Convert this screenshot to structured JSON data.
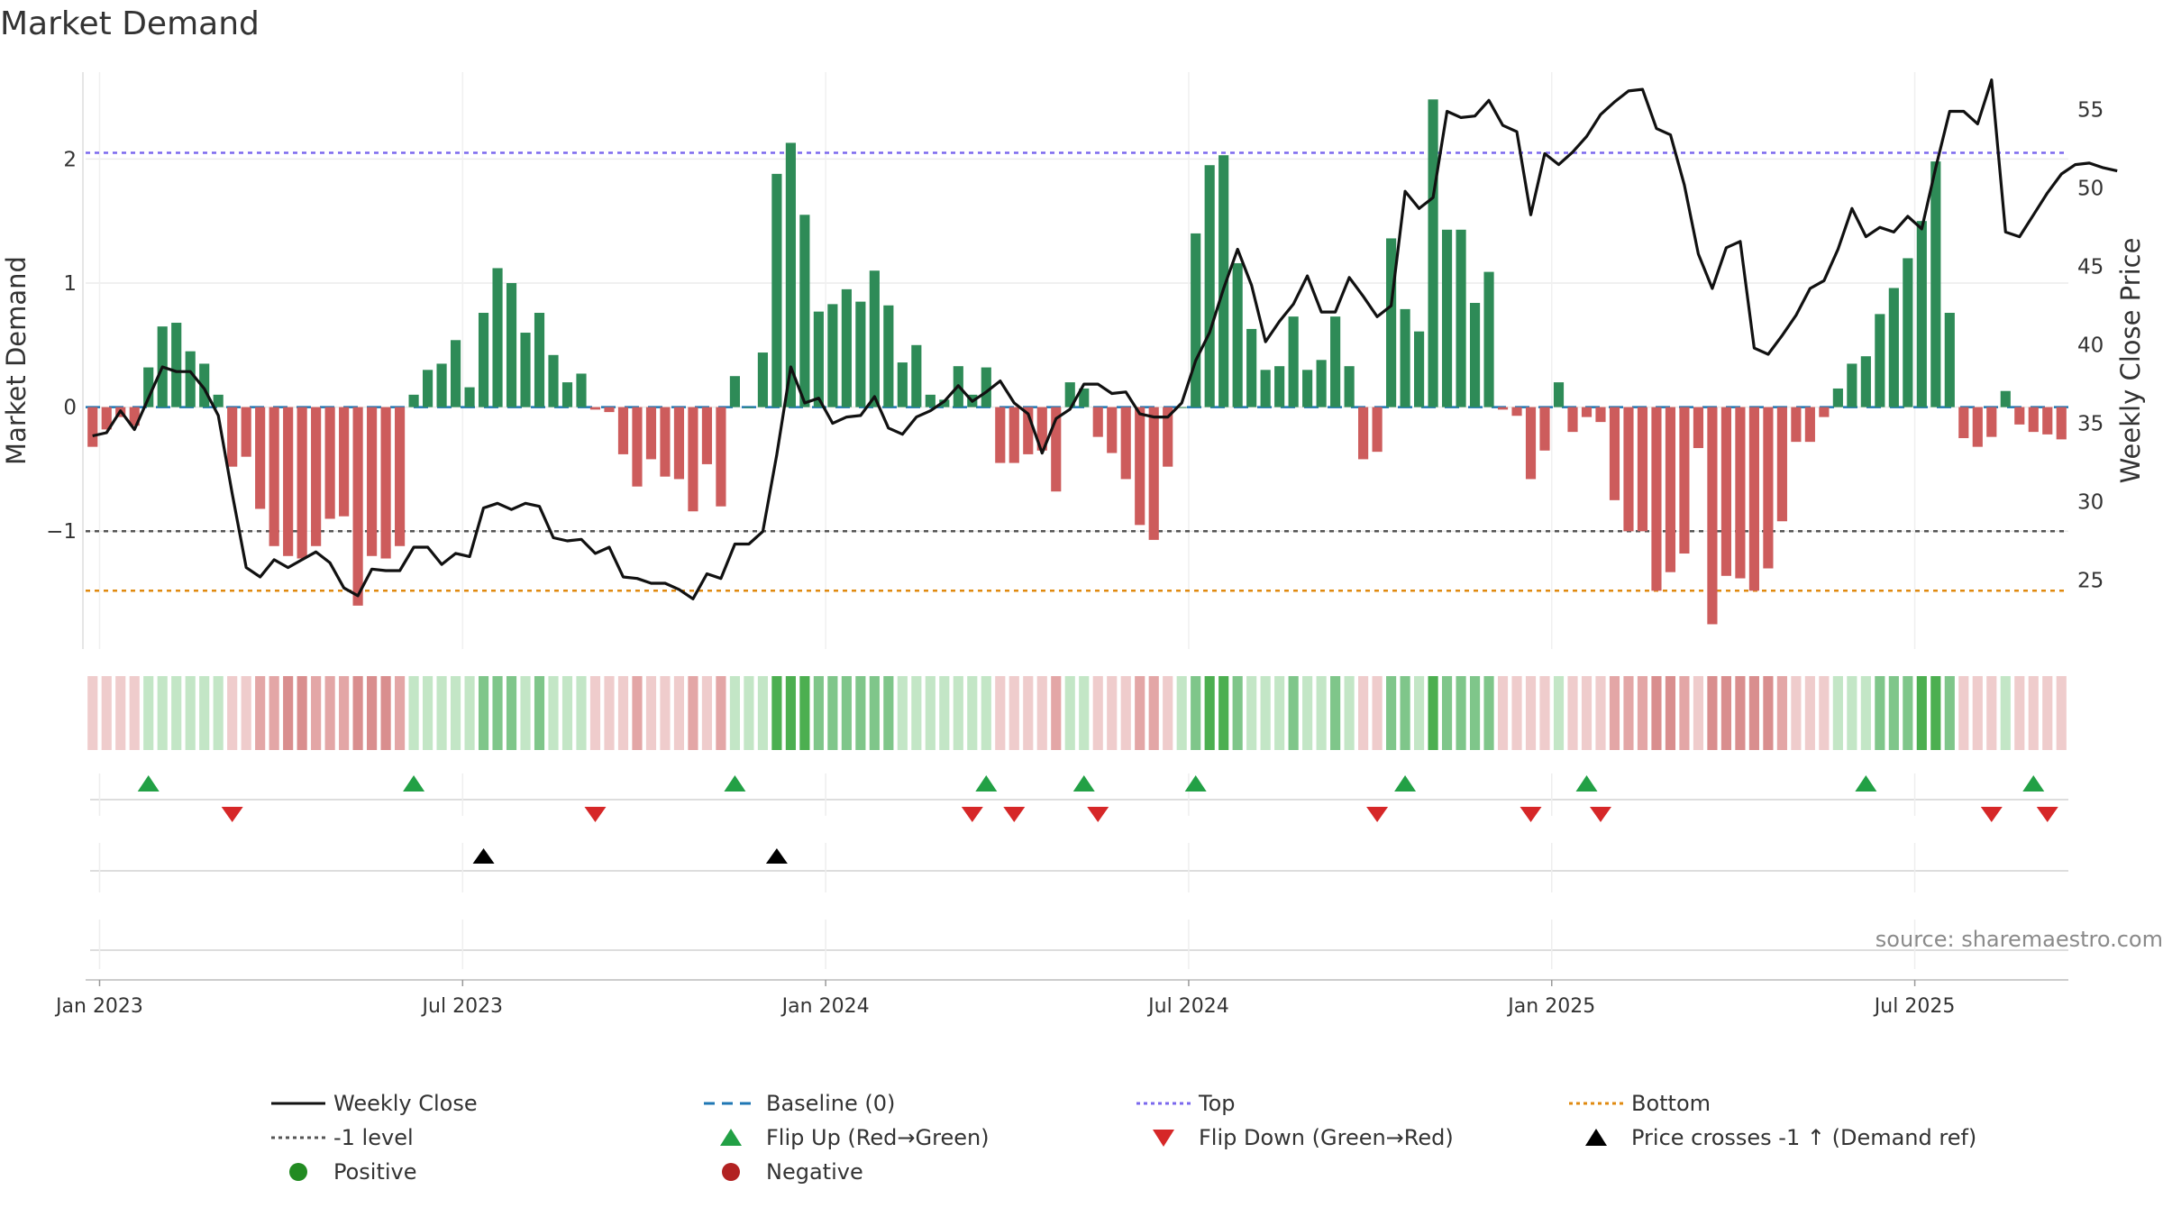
{
  "chart_data": {
    "type": "bar",
    "title": "Market Demand",
    "ylabel": "Market Demand",
    "y2label": "Weekly Close Price",
    "ylim": [
      -1.95,
      2.7
    ],
    "y2lim": [
      20.6,
      57.4
    ],
    "y_ticks": [
      2,
      1,
      0,
      -1
    ],
    "y_tick_labels": [
      "2",
      "1",
      "0",
      "−1"
    ],
    "y2_ticks": [
      55,
      50,
      45,
      40,
      35,
      30,
      25
    ],
    "x_tick_labels": [
      "Jan 2023",
      "Jul 2023",
      "Jan 2024",
      "Jul 2024",
      "Jan 2025",
      "Jul 2025"
    ],
    "x_tick_weeks": [
      1,
      27,
      53,
      79,
      105,
      131
    ],
    "top_level": 2.05,
    "bottom_level": -1.48,
    "minus_one_level": -1,
    "demand": [
      -0.32,
      -0.18,
      -0.08,
      -0.15,
      0.32,
      0.65,
      0.68,
      0.45,
      0.35,
      0.1,
      -0.48,
      -0.4,
      -0.82,
      -1.12,
      -1.2,
      -1.22,
      -1.12,
      -0.9,
      -0.88,
      -1.6,
      -1.2,
      -1.22,
      -1.12,
      0.1,
      0.3,
      0.35,
      0.54,
      0.16,
      0.76,
      1.12,
      1.0,
      0.6,
      0.76,
      0.42,
      0.2,
      0.27,
      -0.02,
      -0.04,
      -0.38,
      -0.64,
      -0.42,
      -0.56,
      -0.58,
      -0.84,
      -0.46,
      -0.8,
      0.25,
      0.0,
      0.44,
      1.88,
      2.13,
      1.55,
      0.77,
      0.83,
      0.95,
      0.85,
      1.1,
      0.82,
      0.36,
      0.5,
      0.1,
      0.06,
      0.33,
      0.1,
      0.32,
      -0.45,
      -0.45,
      -0.38,
      -0.35,
      -0.68,
      0.2,
      0.15,
      -0.24,
      -0.37,
      -0.58,
      -0.95,
      -1.07,
      -0.48,
      0.0,
      1.4,
      1.95,
      2.03,
      1.16,
      0.63,
      0.3,
      0.33,
      0.73,
      0.3,
      0.38,
      0.73,
      0.33,
      -0.42,
      -0.36,
      1.36,
      0.79,
      0.61,
      2.48,
      1.43,
      1.43,
      0.84,
      1.09,
      -0.02,
      -0.07,
      -0.58,
      -0.35,
      0.2,
      -0.2,
      -0.08,
      -0.12,
      -0.75,
      -1.0,
      -1.0,
      -1.48,
      -1.33,
      -1.18,
      -0.33,
      -1.75,
      -1.36,
      -1.38,
      -1.48,
      -1.3,
      -0.92,
      -0.28,
      -0.28,
      -0.08,
      0.15,
      0.35,
      0.41,
      0.75,
      0.96,
      1.2,
      1.5,
      1.98,
      0.76,
      -0.25,
      -0.32,
      -0.24,
      0.13,
      -0.14,
      -0.2,
      -0.22,
      -0.26
    ],
    "series": [
      {
        "name": "Weekly Close",
        "values": [
          34.2,
          34.4,
          35.8,
          34.6,
          36.6,
          38.6,
          38.3,
          38.3,
          37.2,
          35.5,
          30.5,
          25.8,
          25.2,
          26.3,
          25.8,
          26.3,
          26.8,
          26.1,
          24.5,
          24.0,
          25.7,
          25.6,
          25.6,
          27.1,
          27.1,
          26.0,
          26.7,
          26.5,
          29.6,
          29.9,
          29.5,
          29.9,
          29.7,
          27.7,
          27.5,
          27.6,
          26.7,
          27.1,
          25.2,
          25.1,
          24.8,
          24.8,
          24.4,
          23.8,
          25.4,
          25.1,
          27.3,
          27.3,
          28.1,
          33.0,
          38.6,
          36.3,
          36.6,
          35.0,
          35.4,
          35.5,
          36.7,
          34.7,
          34.3,
          35.4,
          35.8,
          36.4,
          37.4,
          36.4,
          37.0,
          37.7,
          36.3,
          35.6,
          33.1,
          35.3,
          35.9,
          37.5,
          37.5,
          36.9,
          37.0,
          35.6,
          35.4,
          35.4,
          36.3,
          39.0,
          40.8,
          43.6,
          46.1,
          43.8,
          40.2,
          41.5,
          42.6,
          44.4,
          42.1,
          42.1,
          44.3,
          43.1,
          41.8,
          42.5,
          49.8,
          48.7,
          49.4,
          54.9,
          54.5,
          54.6,
          55.6,
          54.0,
          53.6,
          48.3,
          52.2,
          51.5,
          52.3,
          53.3,
          54.7,
          55.5,
          56.2,
          56.3,
          53.8,
          53.4,
          50.2,
          45.8,
          43.6,
          46.2,
          46.6,
          39.8,
          39.4,
          40.6,
          41.9,
          43.6,
          44.1,
          46.1,
          48.7,
          46.9,
          47.5,
          47.2,
          48.2,
          47.4,
          51.3,
          54.9,
          54.9,
          54.1,
          56.9,
          47.2,
          46.9,
          48.3,
          49.7,
          50.9,
          51.5,
          51.6,
          51.3,
          51.1
        ]
      },
      {
        "name": "Baseline (0)",
        "values": [
          0
        ]
      }
    ],
    "strip_color_pattern": [
      "light-red",
      "light-green",
      "mid-green",
      "dark-green",
      "mid-red",
      "dark-red"
    ],
    "flip_up_weeks": [
      4,
      23,
      46,
      64,
      71,
      79,
      94,
      107,
      127,
      139
    ],
    "flip_down_weeks": [
      10,
      36,
      63,
      66,
      72,
      92,
      103,
      108,
      136,
      140
    ],
    "price_cross_weeks": [
      28,
      49
    ],
    "legend_position": "bottom",
    "colors": {
      "positive_bar": "#2e8b57",
      "negative_bar": "#cd5c5c",
      "price_line": "#111111",
      "baseline": "#1f77b4",
      "top": "#7b68ee",
      "bottom": "#e08a10",
      "minus_one": "#555555",
      "flip_up": "#22a045",
      "flip_down": "#d62728",
      "cross": "#000000",
      "positive_dot": "#228b22",
      "negative_dot": "#b22222"
    }
  },
  "source": "source: sharemaestro.com",
  "legend": {
    "weekly_close": "Weekly Close",
    "baseline": "Baseline (0)",
    "top": "Top",
    "bottom": "Bottom",
    "minus_one": "-1 level",
    "flip_up": "Flip Up (Red→Green)",
    "flip_down": "Flip Down (Green→Red)",
    "price_cross": "Price crosses -1 ↑ (Demand ref)",
    "positive": "Positive",
    "negative": "Negative"
  }
}
